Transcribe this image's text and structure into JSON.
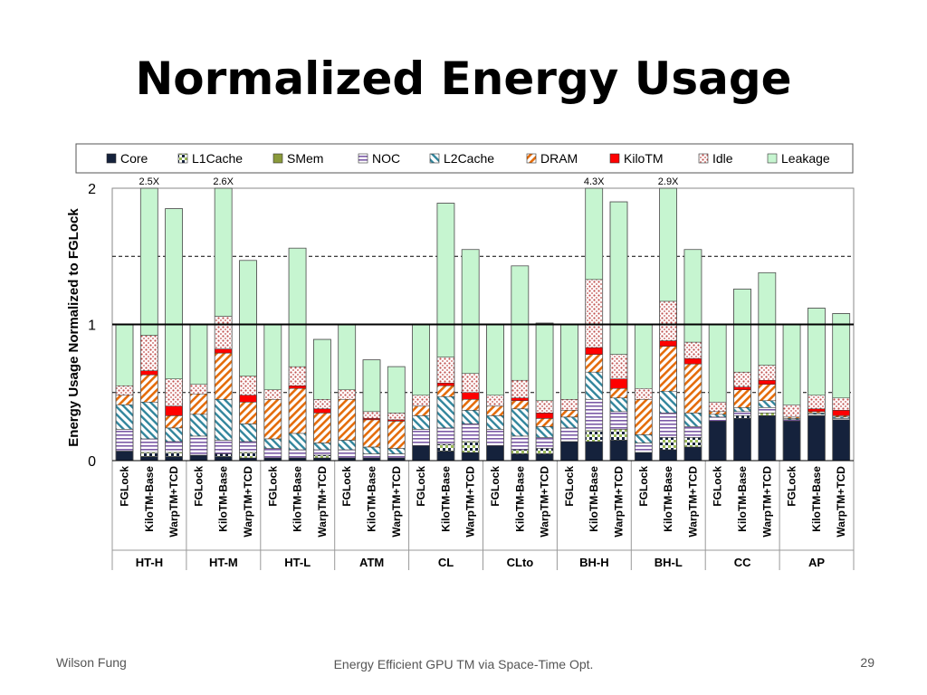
{
  "slide": {
    "title": "Normalized Energy Usage",
    "footer_left": "Wilson Fung",
    "footer_center": "Energy Efficient GPU TM via Space-Time Opt.",
    "page_number": "29"
  },
  "chart_data": {
    "type": "bar",
    "stacked": true,
    "ylabel": "Energy Usage Normalized to FGLock",
    "ylim": [
      0,
      2
    ],
    "yticks": [
      "0",
      "1",
      "2"
    ],
    "dashed_gridlines": [
      0.5,
      1.5
    ],
    "legend_position": "top",
    "components": [
      {
        "name": "Core",
        "color": "#15223c",
        "pattern": "solid"
      },
      {
        "name": "L1Cache",
        "color": "#9bbb59",
        "pattern": "checker"
      },
      {
        "name": "SMem",
        "color": "#8a9a3b",
        "pattern": "solid"
      },
      {
        "name": "NOC",
        "color": "#7b5aa6",
        "pattern": "hstripes"
      },
      {
        "name": "L2Cache",
        "color": "#31859c",
        "pattern": "backdiag"
      },
      {
        "name": "DRAM",
        "color": "#e46c0a",
        "pattern": "diag"
      },
      {
        "name": "KiloTM",
        "color": "#ff0000",
        "pattern": "solid"
      },
      {
        "name": "Idle",
        "color": "#c0504d",
        "pattern": "dots"
      },
      {
        "name": "Leakage",
        "color": "#c6f5d0",
        "pattern": "solid"
      }
    ],
    "groups": [
      {
        "name": "HT-H",
        "bars": [
          {
            "label": "FGLock",
            "values": [
              0.07,
              0,
              0,
              0.16,
              0.18,
              0.07,
              0,
              0.07,
              0.45
            ]
          },
          {
            "label": "KiloTM-Base",
            "annotation": "2.5X",
            "values": [
              0.03,
              0.03,
              0,
              0.1,
              0.27,
              0.2,
              0.03,
              0.26,
              1.08
            ]
          },
          {
            "label": "WarpTM+TCD",
            "values": [
              0.03,
              0.03,
              0,
              0.08,
              0.1,
              0.09,
              0.07,
              0.2,
              1.25
            ]
          }
        ]
      },
      {
        "name": "HT-M",
        "bars": [
          {
            "label": "FGLock",
            "values": [
              0.04,
              0,
              0,
              0.14,
              0.16,
              0.15,
              0,
              0.07,
              0.44
            ]
          },
          {
            "label": "KiloTM-Base",
            "annotation": "2.6X",
            "values": [
              0.03,
              0.02,
              0,
              0.1,
              0.3,
              0.34,
              0.03,
              0.24,
              0.94
            ]
          },
          {
            "label": "WarpTM+TCD",
            "values": [
              0.02,
              0.04,
              0,
              0.08,
              0.13,
              0.16,
              0.05,
              0.14,
              0.85
            ]
          }
        ]
      },
      {
        "name": "HT-L",
        "bars": [
          {
            "label": "FGLock",
            "values": [
              0.02,
              0,
              0,
              0.07,
              0.07,
              0.29,
              0,
              0.07,
              0.48
            ]
          },
          {
            "label": "KiloTM-Base",
            "values": [
              0.02,
              0,
              0,
              0.06,
              0.12,
              0.33,
              0.02,
              0.14,
              0.87
            ]
          },
          {
            "label": "WarpTM+TCD",
            "values": [
              0.02,
              0.02,
              0,
              0.04,
              0.05,
              0.22,
              0.03,
              0.07,
              0.44
            ]
          }
        ]
      },
      {
        "name": "ATM",
        "bars": [
          {
            "label": "FGLock",
            "values": [
              0.02,
              0,
              0,
              0.06,
              0.07,
              0.3,
              0,
              0.07,
              0.48
            ]
          },
          {
            "label": "KiloTM-Base",
            "values": [
              0.02,
              0,
              0,
              0.03,
              0.05,
              0.2,
              0.01,
              0.05,
              0.38
            ]
          },
          {
            "label": "WarpTM+TCD",
            "values": [
              0.02,
              0,
              0,
              0.03,
              0.04,
              0.2,
              0.01,
              0.05,
              0.34
            ]
          }
        ]
      },
      {
        "name": "CL",
        "bars": [
          {
            "label": "FGLock",
            "values": [
              0.11,
              0,
              0,
              0.12,
              0.1,
              0.07,
              0,
              0.08,
              0.52
            ]
          },
          {
            "label": "KiloTM-Base",
            "values": [
              0.07,
              0.05,
              0,
              0.12,
              0.23,
              0.08,
              0.02,
              0.19,
              1.13
            ]
          },
          {
            "label": "WarpTM+TCD",
            "values": [
              0.06,
              0.08,
              0,
              0.13,
              0.1,
              0.08,
              0.05,
              0.14,
              0.91
            ]
          }
        ]
      },
      {
        "name": "CLto",
        "bars": [
          {
            "label": "FGLock",
            "values": [
              0.11,
              0,
              0,
              0.12,
              0.1,
              0.07,
              0,
              0.08,
              0.52
            ]
          },
          {
            "label": "KiloTM-Base",
            "values": [
              0.05,
              0.03,
              0,
              0.1,
              0.2,
              0.06,
              0.02,
              0.13,
              0.84
            ]
          },
          {
            "label": "WarpTM+TCD",
            "values": [
              0.05,
              0.04,
              0,
              0.08,
              0.08,
              0.06,
              0.04,
              0.09,
              0.57
            ]
          }
        ]
      },
      {
        "name": "BH-H",
        "bars": [
          {
            "label": "FGLock",
            "values": [
              0.14,
              0,
              0,
              0.1,
              0.08,
              0.05,
              0,
              0.08,
              0.55
            ]
          },
          {
            "label": "KiloTM-Base",
            "annotation": "4.3X",
            "values": [
              0.14,
              0.08,
              0,
              0.23,
              0.2,
              0.13,
              0.05,
              0.5,
              0.67
            ]
          },
          {
            "label": "WarpTM+TCD",
            "values": [
              0.15,
              0.08,
              0,
              0.13,
              0.1,
              0.07,
              0.07,
              0.18,
              1.12
            ]
          }
        ]
      },
      {
        "name": "BH-L",
        "bars": [
          {
            "label": "FGLock",
            "values": [
              0.06,
              0,
              0,
              0.07,
              0.06,
              0.26,
              0,
              0.08,
              0.47
            ]
          },
          {
            "label": "KiloTM-Base",
            "annotation": "2.9X",
            "values": [
              0.08,
              0.09,
              0,
              0.18,
              0.16,
              0.33,
              0.04,
              0.29,
              0.83
            ]
          },
          {
            "label": "WarpTM+TCD",
            "values": [
              0.1,
              0.07,
              0,
              0.08,
              0.1,
              0.36,
              0.04,
              0.12,
              0.68
            ]
          }
        ]
      },
      {
        "name": "CC",
        "bars": [
          {
            "label": "FGLock",
            "values": [
              0.29,
              0,
              0,
              0.03,
              0.02,
              0.02,
              0,
              0.07,
              0.57
            ]
          },
          {
            "label": "KiloTM-Base",
            "values": [
              0.31,
              0.02,
              0,
              0.03,
              0.03,
              0.13,
              0.02,
              0.11,
              0.61
            ]
          },
          {
            "label": "WarpTM+TCD",
            "values": [
              0.33,
              0.02,
              0,
              0.04,
              0.05,
              0.12,
              0.03,
              0.11,
              0.68
            ]
          }
        ]
      },
      {
        "name": "AP",
        "bars": [
          {
            "label": "FGLock",
            "values": [
              0.29,
              0,
              0,
              0.01,
              0.01,
              0.01,
              0,
              0.09,
              0.59
            ]
          },
          {
            "label": "KiloTM-Base",
            "values": [
              0.33,
              0,
              0,
              0.01,
              0.01,
              0.01,
              0.02,
              0.1,
              0.64
            ]
          },
          {
            "label": "WarpTM+TCD",
            "values": [
              0.3,
              0,
              0,
              0.01,
              0.01,
              0.01,
              0.04,
              0.09,
              0.62
            ]
          }
        ]
      }
    ]
  }
}
